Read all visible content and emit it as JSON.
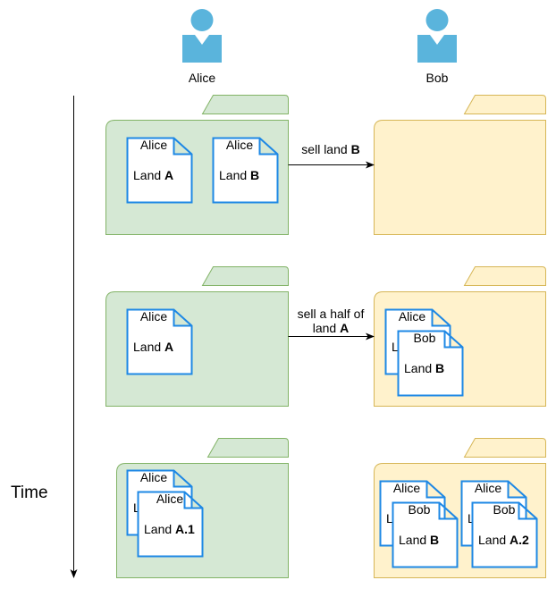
{
  "actors": {
    "alice": {
      "name": "Alice"
    },
    "bob": {
      "name": "Bob"
    }
  },
  "axis": {
    "label": "Time"
  },
  "colors": {
    "actor": "#5AB4DC",
    "alice_folder_fill": "#D5E8D4",
    "alice_folder_stroke": "#82B366",
    "bob_folder_fill": "#FFF2CC",
    "bob_folder_stroke": "#D6B656",
    "document_stroke": "#1E88E5"
  },
  "documents": {
    "d1": {
      "owner": "Alice",
      "prefix": "Land ",
      "land": "A"
    },
    "d2": {
      "owner": "Alice",
      "prefix": "Land ",
      "land": "B"
    },
    "d3": {
      "owner": "Alice",
      "prefix": "Land ",
      "land": "A"
    },
    "d4": {
      "owner": "Alice",
      "prefix": "L"
    },
    "d5": {
      "owner": "Bob",
      "prefix": "Land ",
      "land": "B"
    },
    "d6": {
      "owner": "Alice",
      "prefix": "L"
    },
    "d7": {
      "owner": "Alice",
      "prefix": "Land ",
      "land": "A.1"
    },
    "d8": {
      "owner": "Alice",
      "prefix": "L"
    },
    "d9": {
      "owner": "Bob",
      "prefix": "Land ",
      "land": "B"
    },
    "d10": {
      "owner": "Alice",
      "prefix": "L"
    },
    "d11": {
      "owner": "Bob",
      "prefix": "Land ",
      "land": "A.2"
    }
  },
  "transfers": {
    "t1": {
      "text": "sell land ",
      "land": "B"
    },
    "t2": {
      "line1": "sell a half of",
      "line2_prefix": "land ",
      "land": "A"
    }
  }
}
